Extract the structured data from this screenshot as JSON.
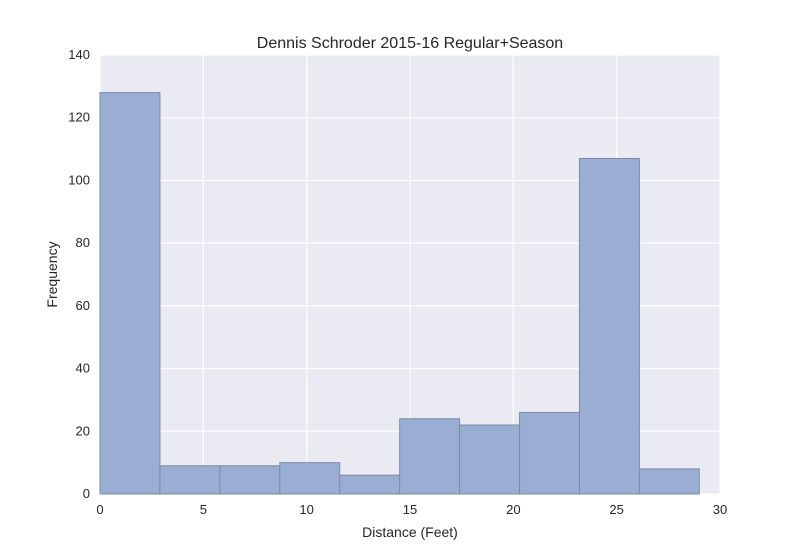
{
  "chart_data": {
    "type": "bar",
    "title": "Dennis Schroder 2015-16 Regular+Season",
    "xlabel": "Distance (Feet)",
    "ylabel": "Frequency",
    "xlim": [
      0,
      30
    ],
    "ylim": [
      0,
      140
    ],
    "xticks": [
      "0",
      "5",
      "10",
      "15",
      "20",
      "25",
      "30"
    ],
    "yticks": [
      "0",
      "20",
      "40",
      "60",
      "80",
      "100",
      "120",
      "140"
    ],
    "grid": true,
    "bins": [
      {
        "x0": 0.0,
        "x1": 2.9,
        "value": 128
      },
      {
        "x0": 2.9,
        "x1": 5.8,
        "value": 9
      },
      {
        "x0": 5.8,
        "x1": 8.7,
        "value": 9
      },
      {
        "x0": 8.7,
        "x1": 11.6,
        "value": 10
      },
      {
        "x0": 11.6,
        "x1": 14.5,
        "value": 6
      },
      {
        "x0": 14.5,
        "x1": 17.4,
        "value": 24
      },
      {
        "x0": 17.4,
        "x1": 20.3,
        "value": 22
      },
      {
        "x0": 20.3,
        "x1": 23.2,
        "value": 26
      },
      {
        "x0": 23.2,
        "x1": 26.1,
        "value": 107
      },
      {
        "x0": 26.1,
        "x1": 29.0,
        "value": 8
      }
    ],
    "colors": {
      "bar_fill": "#9aadd2",
      "bar_edge": "#7f8aa6",
      "plot_background": "#eaeaf2",
      "grid": "#ffffff"
    }
  }
}
